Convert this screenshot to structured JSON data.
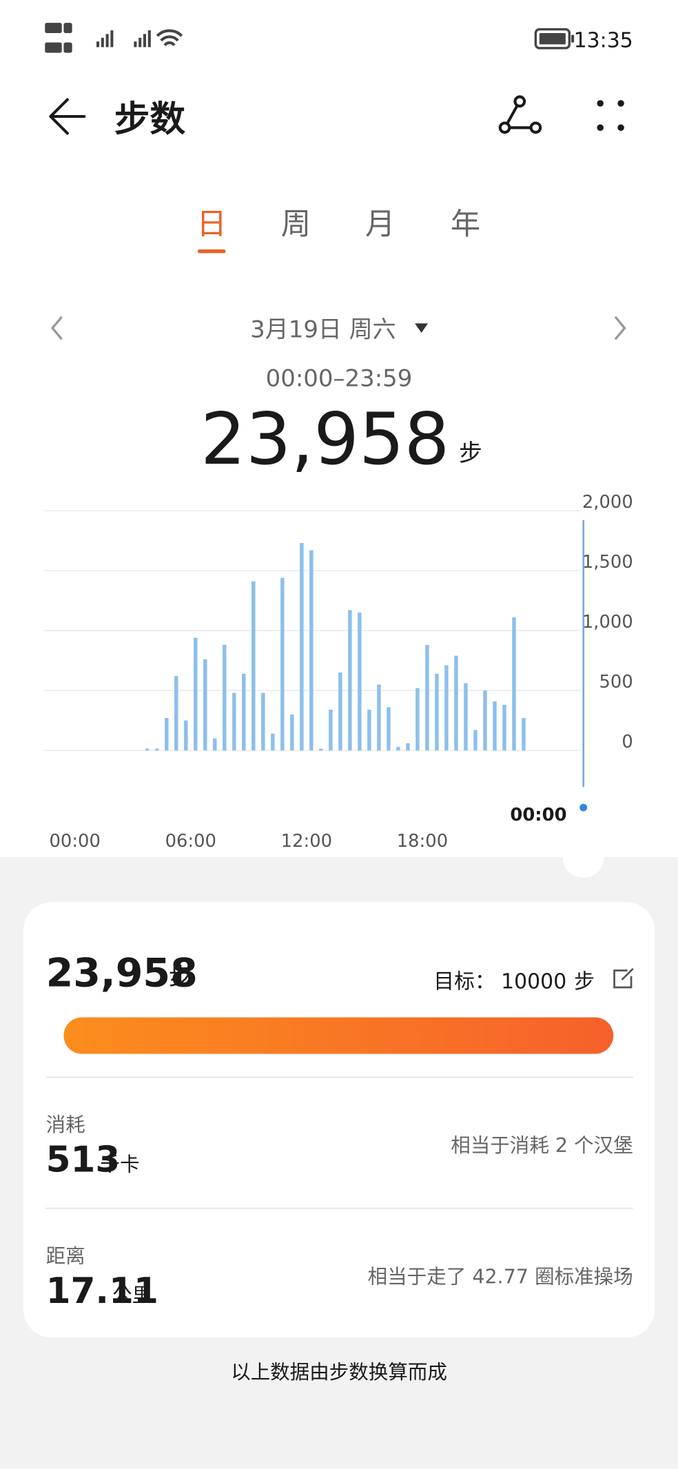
{
  "status_bar": {
    "time": "13:35"
  },
  "header": {
    "title": "步数"
  },
  "tabs": [
    "日",
    "周",
    "月",
    "年"
  ],
  "date_nav": {
    "date": "3月19日 周六",
    "time_range": "00:00–23:59",
    "total": "23,958",
    "unit": "步"
  },
  "chart": {
    "type": "bar",
    "color": "#8cbfed",
    "x": [
      3.5,
      4,
      4.5,
      5,
      5.5,
      6,
      6.5,
      7,
      7.5,
      8,
      8.5,
      9,
      9.5,
      10,
      10.5,
      11,
      11.5,
      12,
      12.5,
      13,
      13.5,
      14,
      14.5,
      15,
      15.5,
      16,
      16.5,
      17,
      17.5,
      18,
      18.5,
      19,
      19.5,
      20,
      20.5,
      21,
      21.5,
      22,
      22.5,
      23
    ],
    "values": [
      15,
      15,
      270,
      620,
      250,
      940,
      760,
      100,
      880,
      480,
      640,
      1410,
      480,
      140,
      1440,
      300,
      1730,
      1670,
      15,
      340,
      650,
      1170,
      1150,
      340,
      550,
      360,
      30,
      60,
      520,
      880,
      640,
      710,
      790,
      560,
      170,
      500,
      410,
      380,
      1110,
      270
    ],
    "xlim": [
      -1.6,
      26.2
    ],
    "xticks": [
      {
        "value": 0,
        "label": "00:00"
      },
      {
        "value": 6,
        "label": "06:00"
      },
      {
        "value": 12,
        "label": "12:00"
      },
      {
        "value": 18,
        "label": "18:00"
      }
    ],
    "ylim": [
      0,
      2000
    ],
    "yticks": [
      0,
      500,
      {
        "value": 1000,
        "label": "1,000"
      },
      {
        "value": 1500,
        "label": "1,500"
      },
      {
        "value": 2000,
        "label": "2,000"
      }
    ],
    "grid": true,
    "cursor_label": "00:00"
  },
  "summary": {
    "steps": "23,958",
    "steps_unit": "步",
    "goal_label": "目标：",
    "goal": "10000",
    "goal_unit": "步"
  },
  "calories": {
    "label": "消耗",
    "value": "513",
    "unit": "千卡",
    "comparison": "相当于消耗 2 个汉堡"
  },
  "distance": {
    "label": "距离",
    "value": "17.11",
    "unit": "公里",
    "comparison": "相当于走了 42.77 圈标准操场"
  },
  "footer": "以上数据由步数换算而成"
}
